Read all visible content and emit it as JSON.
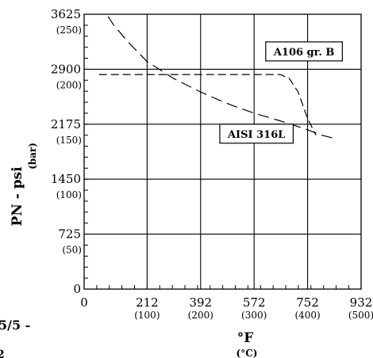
{
  "chart_data": {
    "type": "line",
    "xlabel": "°F",
    "xlabel_sub": "(°C)",
    "ylabel": "PN - psi",
    "ylabel_sub": "(bar)",
    "xlim": [
      0,
      932
    ],
    "ylim": [
      0,
      3625
    ],
    "x_ticks": [
      {
        "value": 0,
        "label": "0",
        "sub": ""
      },
      {
        "value": 212,
        "label": "212",
        "sub": "(100)"
      },
      {
        "value": 392,
        "label": "392",
        "sub": "(200)"
      },
      {
        "value": 572,
        "label": "572",
        "sub": "(300)"
      },
      {
        "value": 752,
        "label": "752",
        "sub": "(400)"
      },
      {
        "value": 932,
        "label": "932",
        "sub": "(500)"
      }
    ],
    "y_ticks": [
      {
        "value": 0,
        "label": "0",
        "sub": ""
      },
      {
        "value": 725,
        "label": "725",
        "sub": "(50)"
      },
      {
        "value": 1450,
        "label": "1450",
        "sub": "(100)"
      },
      {
        "value": 2175,
        "label": "2175",
        "sub": "(150)"
      },
      {
        "value": 2900,
        "label": "2900",
        "sub": "(200)"
      },
      {
        "value": 3625,
        "label": "3625",
        "sub": "(250)"
      }
    ],
    "grid": true,
    "series": [
      {
        "name": "AISI 316L",
        "style": "long-dash",
        "x": [
          50,
          100,
          150,
          212,
          260,
          300,
          392,
          450,
          500,
          572,
          650,
          700,
          752,
          800,
          850
        ],
        "y": [
          3780,
          3480,
          3250,
          3000,
          2880,
          2780,
          2600,
          2500,
          2420,
          2320,
          2230,
          2170,
          2100,
          2030,
          1980
        ]
      },
      {
        "name": "A106 gr. B",
        "style": "dash",
        "x": [
          50,
          200,
          400,
          600,
          660,
          690,
          720,
          752,
          780
        ],
        "y": [
          2830,
          2830,
          2830,
          2830,
          2830,
          2780,
          2600,
          2250,
          2030
        ]
      }
    ]
  },
  "stray_text": {
    "line1": "5/5 -",
    "line2": "2"
  }
}
